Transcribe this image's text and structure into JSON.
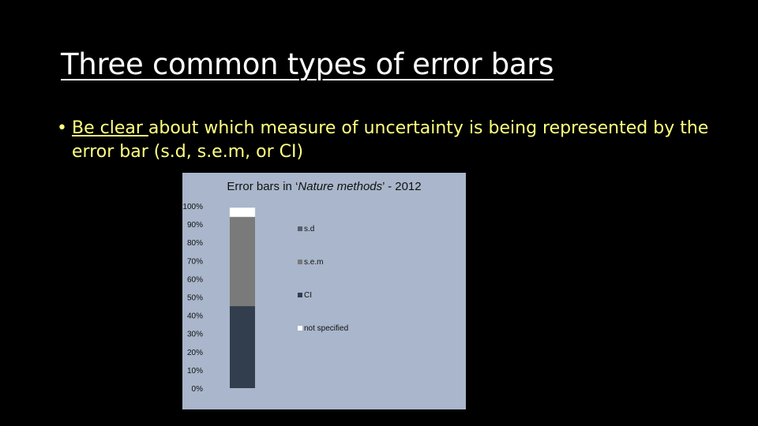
{
  "slide": {
    "title": "Three common types of error bars",
    "bullet": {
      "marker": "•",
      "emphasis": "Be clear ",
      "rest": "about which measure of uncertainty is being represented by the error bar (s.d, s.e.m, or CI)"
    }
  },
  "chart_title": {
    "prefix": "Error bars in ‘",
    "italic": "Nature methods",
    "suffix": "’ - 2012"
  },
  "chart_data": {
    "type": "bar",
    "stacked": true,
    "title": "Error bars in ‘Nature methods’ - 2012",
    "categories": [
      ""
    ],
    "series": [
      {
        "name": "s.d",
        "values": [
          0.0
        ],
        "color": "#575f6e"
      },
      {
        "name": "s.e.m",
        "values": [
          49.0
        ],
        "color": "#7a7a7a"
      },
      {
        "name": "CI",
        "values": [
          45.0
        ],
        "color": "#323d4e"
      },
      {
        "name": "not specified",
        "values": [
          5.0
        ],
        "color": "#ffffff"
      }
    ],
    "stack_order_bottom_to_top": [
      "CI",
      "s.e.m",
      "s.d",
      "not specified"
    ],
    "ylim": [
      0,
      100
    ],
    "yticks": [
      "0%",
      "10%",
      "20%",
      "30%",
      "40%",
      "50%",
      "60%",
      "70%",
      "80%",
      "90%",
      "100%"
    ],
    "legend": "right",
    "grid": false
  }
}
